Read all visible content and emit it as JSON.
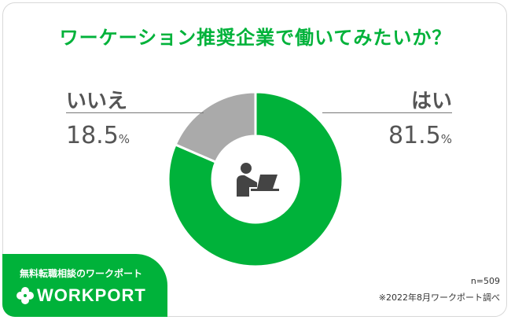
{
  "title": "ワーケーション推奨企業で働いてみたいか？",
  "chart_data": {
    "type": "pie",
    "title": "ワーケーション推奨企業で働いてみたいか？",
    "categories": [
      "はい",
      "いいえ"
    ],
    "values": [
      81.5,
      18.5
    ],
    "value_labels": [
      "81.5",
      "18.5"
    ],
    "unit": "%",
    "colors": [
      "#00b23a",
      "#aaaaaa"
    ],
    "donut": true,
    "center_icon": "person-at-laptop-icon"
  },
  "labels": {
    "no": {
      "name": "いいえ",
      "value": "18.5",
      "unit": "%"
    },
    "yes": {
      "name": "はい",
      "value": "81.5",
      "unit": "%"
    }
  },
  "meta": {
    "sample": "n=509",
    "source": "※2022年8月ワークポート調べ"
  },
  "brand": {
    "tagline": "無料転職相談のワークポート",
    "logo_text": "WORKPORT",
    "logo_icon": "clover-icon",
    "color": "#00b23a"
  }
}
